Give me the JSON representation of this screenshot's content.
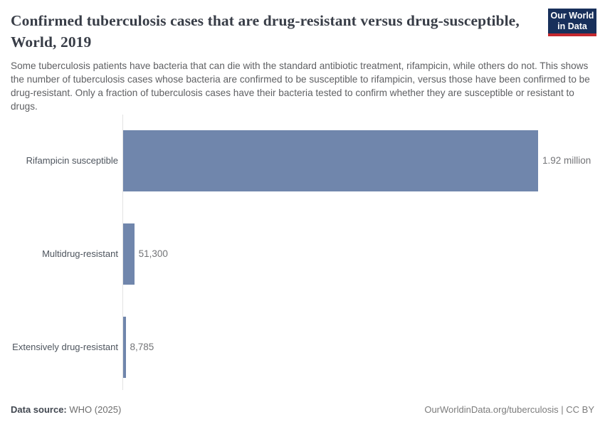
{
  "header": {
    "title": "Confirmed tuberculosis cases that are drug-resistant versus drug-susceptible, World, 2019",
    "subtitle": "Some tuberculosis patients have bacteria that can die with the standard antibiotic treatment, rifampicin, while others do not. This shows the number of tuberculosis cases whose bacteria are confirmed to be susceptible to rifampicin, versus those have been confirmed to be drug-resistant. Only a fraction of tuberculosis cases have their bacteria tested to confirm whether they are susceptible or resistant to drugs."
  },
  "logo": {
    "line1": "Our World",
    "line2": "in Data",
    "bg_color": "#18305b",
    "accent_color": "#c4282e"
  },
  "chart_data": {
    "type": "bar",
    "orientation": "horizontal",
    "title": "Confirmed tuberculosis cases that are drug-resistant versus drug-susceptible, World, 2019",
    "categories": [
      "Rifampicin susceptible",
      "Multidrug-resistant",
      "Extensively drug-resistant"
    ],
    "values": [
      1920000,
      51300,
      8785
    ],
    "value_labels": [
      "1.92 million",
      "51,300",
      "8,785"
    ],
    "bar_color": "#7086ac",
    "xlim": [
      0,
      1920000
    ],
    "grid": false,
    "legend": "none",
    "axis_color": "#e2e2e2"
  },
  "footer": {
    "source_label": "Data source:",
    "source_value": "WHO (2025)",
    "link_text": "OurWorldinData.org/tuberculosis | CC BY"
  }
}
